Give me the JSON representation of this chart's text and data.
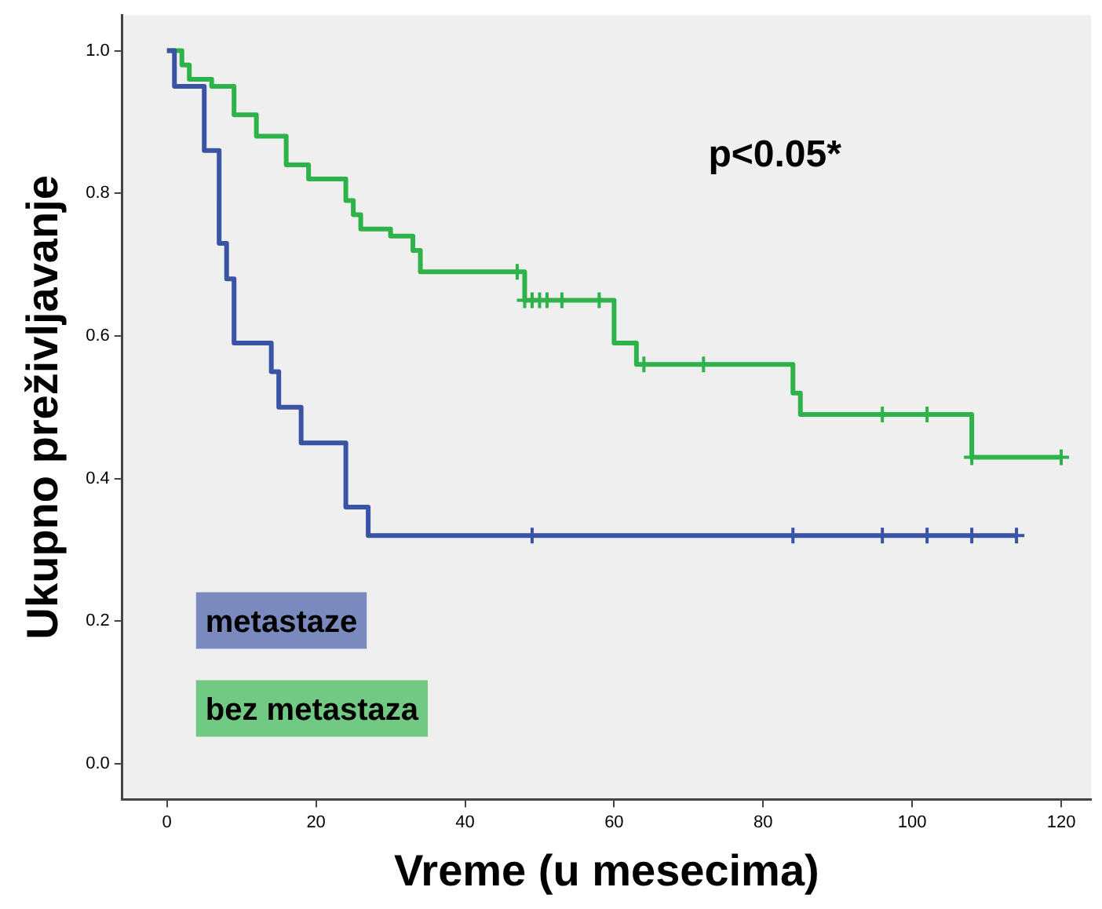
{
  "chart_data": {
    "type": "step",
    "xlabel": "Vreme (u mesecima)",
    "ylabel": "Ukupno preživljavanje",
    "annotations": [
      "p<0.05*"
    ],
    "legend": "bottom left",
    "grid": false,
    "marker": "none",
    "xlim": [
      -6,
      124
    ],
    "ylim": [
      -0.05,
      1.05
    ],
    "xticks": [
      0,
      20,
      40,
      60,
      80,
      100,
      120
    ],
    "yticks": [
      {
        "value": 0,
        "label": "0.0"
      },
      {
        "value": 0.2,
        "label": "0.2"
      },
      {
        "value": 0.4,
        "label": "0.4"
      },
      {
        "value": 0.6,
        "label": "0.6"
      },
      {
        "value": 0.8,
        "label": "0.8"
      },
      {
        "value": 1,
        "label": "1.0"
      }
    ],
    "series": [
      {
        "name": "metastaze",
        "color": "#3a53a4",
        "x": [
          0,
          1,
          5,
          7,
          8,
          9,
          14,
          15,
          18,
          24,
          27,
          114
        ],
        "values": [
          1,
          0.95,
          0.86,
          0.73,
          0.68,
          0.59,
          0.55,
          0.5,
          0.45,
          0.36,
          0.32,
          0.32
        ]
      },
      {
        "name": "bez metastaza",
        "color": "#2db34a",
        "x": [
          0,
          2,
          3,
          6,
          9,
          12,
          16,
          19,
          24,
          25,
          26,
          30,
          33,
          34,
          48,
          60,
          63,
          84,
          85,
          108,
          120
        ],
        "values": [
          1,
          0.98,
          0.96,
          0.95,
          0.91,
          0.88,
          0.84,
          0.82,
          0.79,
          0.77,
          0.75,
          0.74,
          0.72,
          0.69,
          0.65,
          0.59,
          0.56,
          0.52,
          0.49,
          0.43,
          0.43
        ]
      },
      {
        "type": "scatter",
        "marker": "cross",
        "color": "#3a53a4",
        "x": [
          49,
          84,
          96,
          102,
          108,
          114
        ],
        "values": [
          0.32,
          0.32,
          0.32,
          0.32,
          0.32,
          0.32
        ]
      },
      {
        "type": "scatter",
        "marker": "cross",
        "color": "#2db34a",
        "x": [
          47,
          48,
          49,
          50,
          51,
          53,
          58,
          64,
          72,
          96,
          102,
          108,
          120
        ],
        "values": [
          0.69,
          0.65,
          0.65,
          0.65,
          0.65,
          0.65,
          0.65,
          0.56,
          0.56,
          0.49,
          0.49,
          0.43,
          0.43
        ]
      }
    ]
  }
}
